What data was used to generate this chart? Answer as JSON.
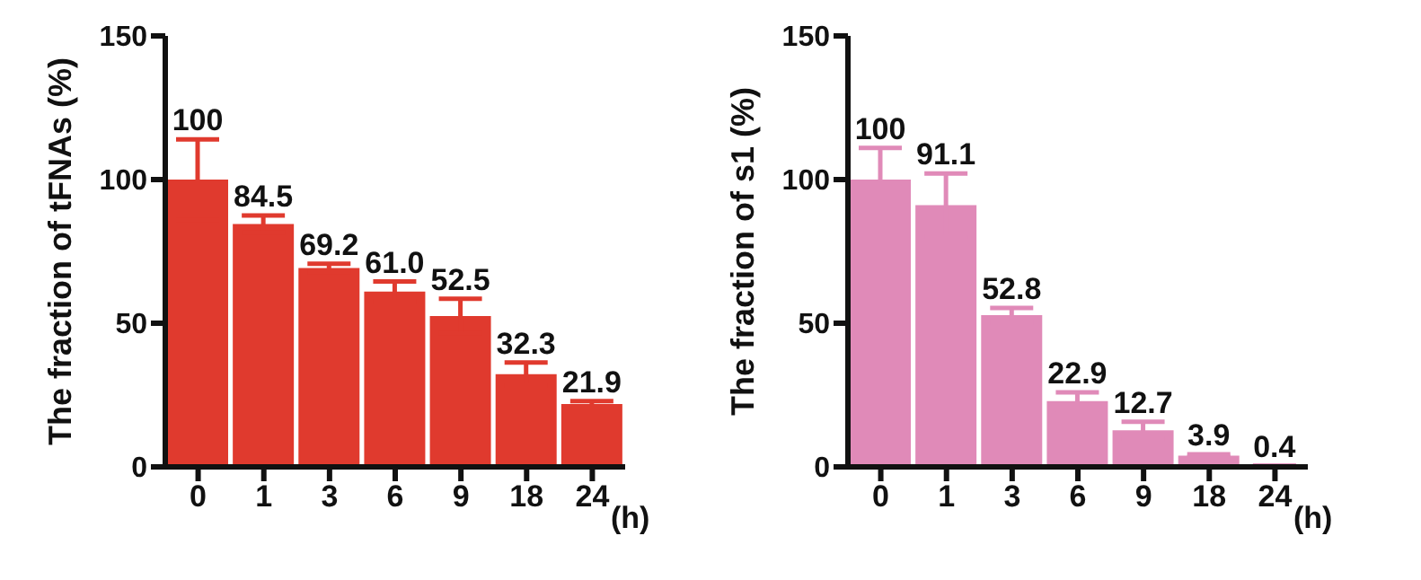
{
  "chart_data": [
    {
      "type": "bar",
      "categories": [
        "0",
        "1",
        "3",
        "6",
        "9",
        "18",
        "24"
      ],
      "xlabel": "(h)",
      "ylabel": "The fraction of tFNAs  (%)",
      "values": [
        100,
        84.5,
        69.2,
        61.0,
        52.5,
        32.3,
        21.9
      ],
      "color": "#e03a2e",
      "errors": [
        14,
        3,
        1.5,
        3.5,
        6,
        4,
        1
      ],
      "value_labels": [
        "100",
        "84.5",
        "69.2",
        "61.0",
        "52.5",
        "32.3",
        "21.9"
      ],
      "ylim": [
        0,
        150
      ],
      "yticks": [
        0,
        50,
        100,
        150
      ],
      "grid": false,
      "legend": false
    },
    {
      "type": "bar",
      "categories": [
        "0",
        "1",
        "3",
        "6",
        "9",
        "18",
        "24"
      ],
      "xlabel": "(h)",
      "ylabel": "The fraction of s1      (%)",
      "values": [
        100,
        91.1,
        52.8,
        22.9,
        12.7,
        3.9,
        0.4
      ],
      "color": "#e08ab8",
      "errors": [
        11,
        11,
        2.5,
        3,
        3,
        0.5,
        null
      ],
      "value_labels": [
        "100",
        "91.1",
        "52.8",
        "22.9",
        "12.7",
        "3.9",
        "0.4"
      ],
      "ylim": [
        0,
        150
      ],
      "yticks": [
        0,
        50,
        100,
        150
      ],
      "grid": false,
      "legend": false
    }
  ]
}
